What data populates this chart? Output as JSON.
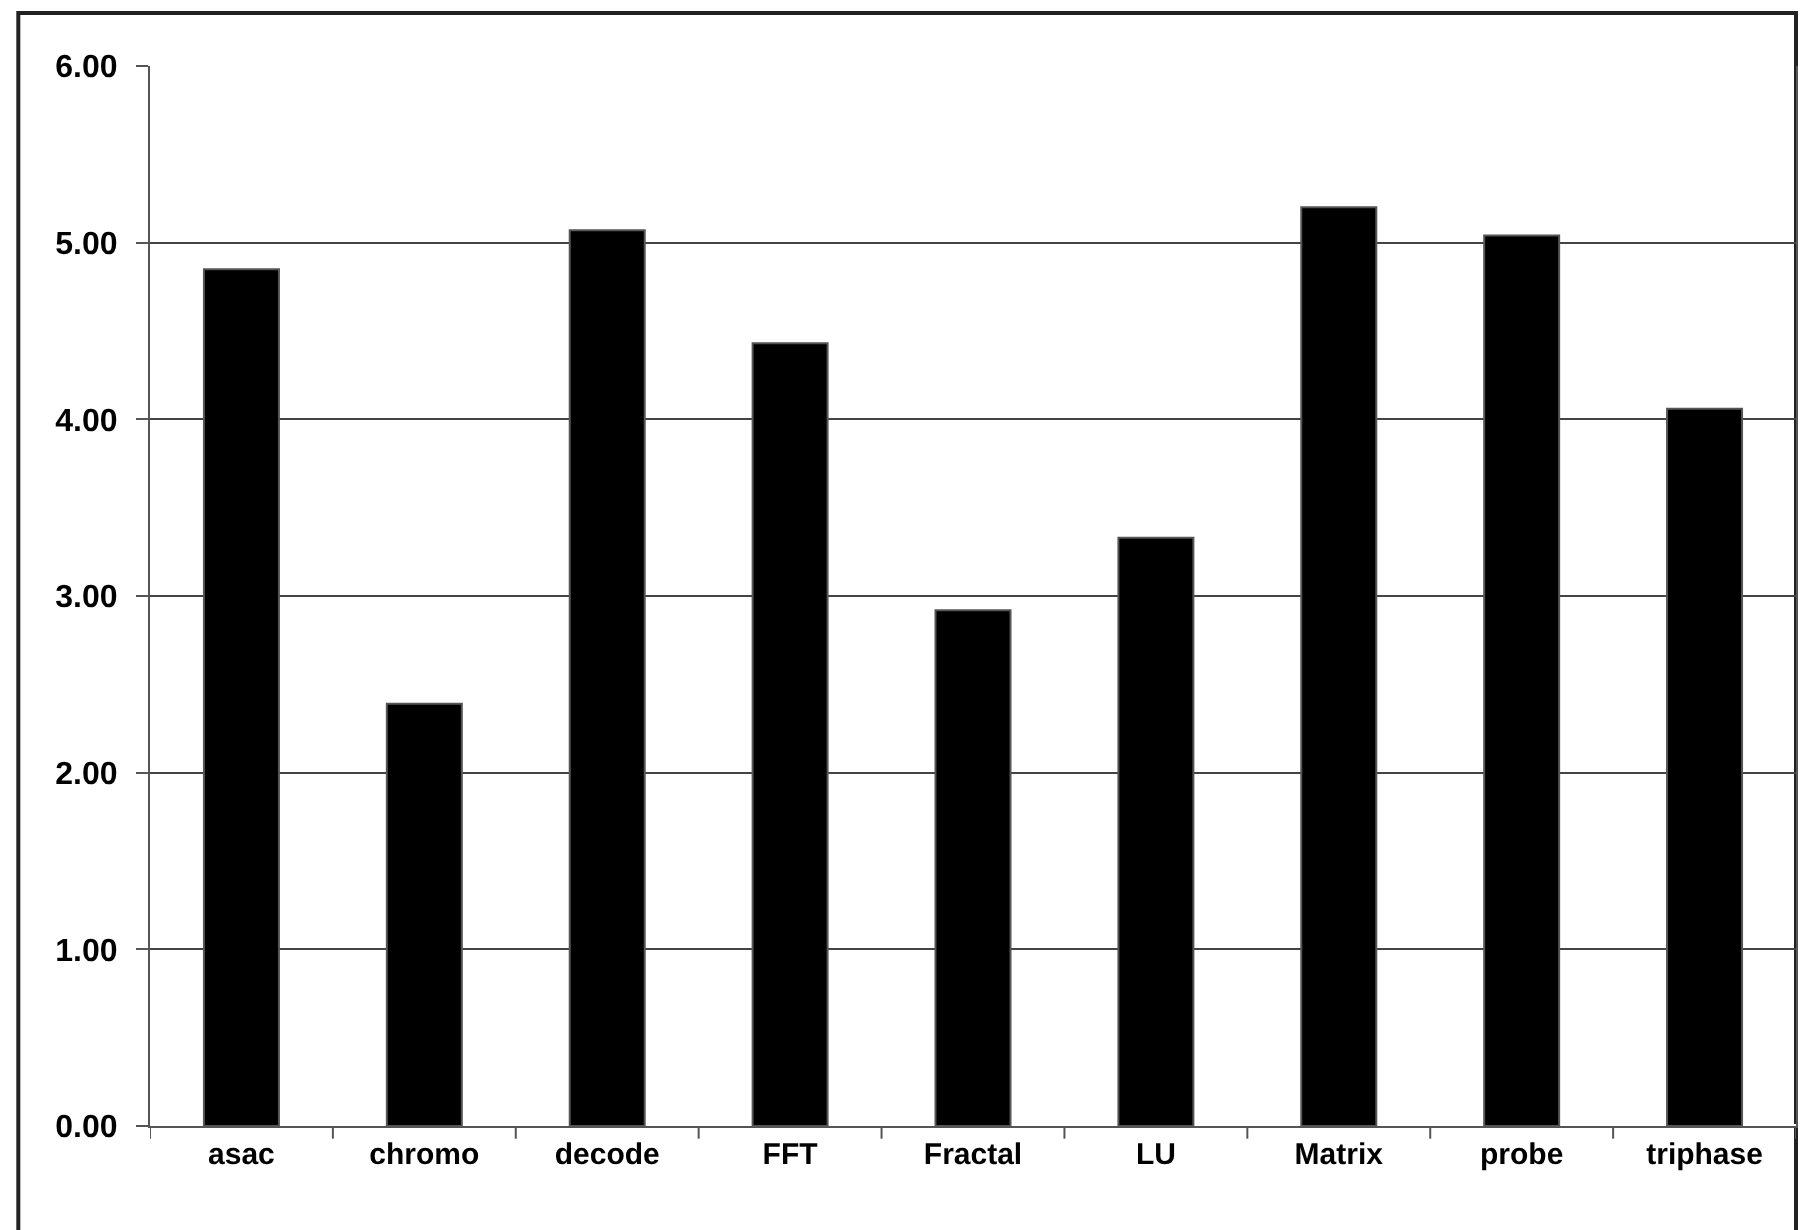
{
  "chart_data": {
    "type": "bar",
    "categories": [
      "asac",
      "chromo",
      "decode",
      "FFT",
      "Fractal",
      "LU",
      "Matrix",
      "probe",
      "triphase"
    ],
    "values": [
      4.85,
      2.39,
      5.07,
      4.43,
      2.92,
      3.33,
      5.2,
      5.04,
      4.06
    ],
    "color": "#000000",
    "ylim": [
      0,
      6
    ],
    "yticks": [
      {
        "value": 0,
        "label": "0.00"
      },
      {
        "value": 1,
        "label": "1.00"
      },
      {
        "value": 2,
        "label": "2.00"
      },
      {
        "value": 3,
        "label": "3.00"
      },
      {
        "value": 4,
        "label": "4.00"
      },
      {
        "value": 5,
        "label": "5.00"
      },
      {
        "value": 6,
        "label": "6.00"
      }
    ],
    "grid": "y"
  }
}
